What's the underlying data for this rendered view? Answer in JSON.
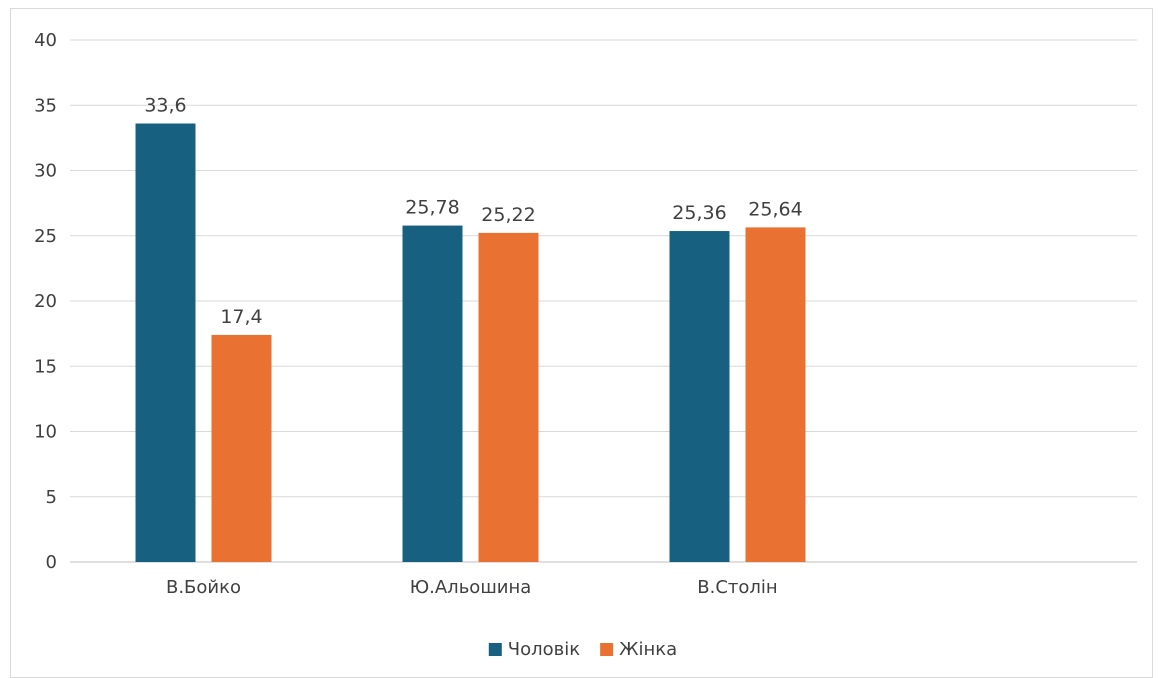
{
  "chart_data": {
    "type": "bar",
    "categories": [
      "В.Бойко",
      "Ю.Альошина",
      "В.Столін"
    ],
    "series": [
      {
        "name": "Чоловік",
        "values": [
          33.6,
          25.78,
          25.36
        ],
        "labels": [
          "33,6",
          "25,78",
          "25,36"
        ],
        "color": "#17607f"
      },
      {
        "name": "Жінка",
        "values": [
          17.4,
          25.22,
          25.64
        ],
        "labels": [
          "17,4",
          "25,22",
          "25,64"
        ],
        "color": "#e97132"
      }
    ],
    "title": "",
    "xlabel": "",
    "ylabel": "",
    "ylim": [
      0,
      40
    ],
    "yticks": [
      "0",
      "5",
      "10",
      "15",
      "20",
      "25",
      "30",
      "35",
      "40"
    ],
    "grid": true,
    "legend": "bottom-center"
  }
}
